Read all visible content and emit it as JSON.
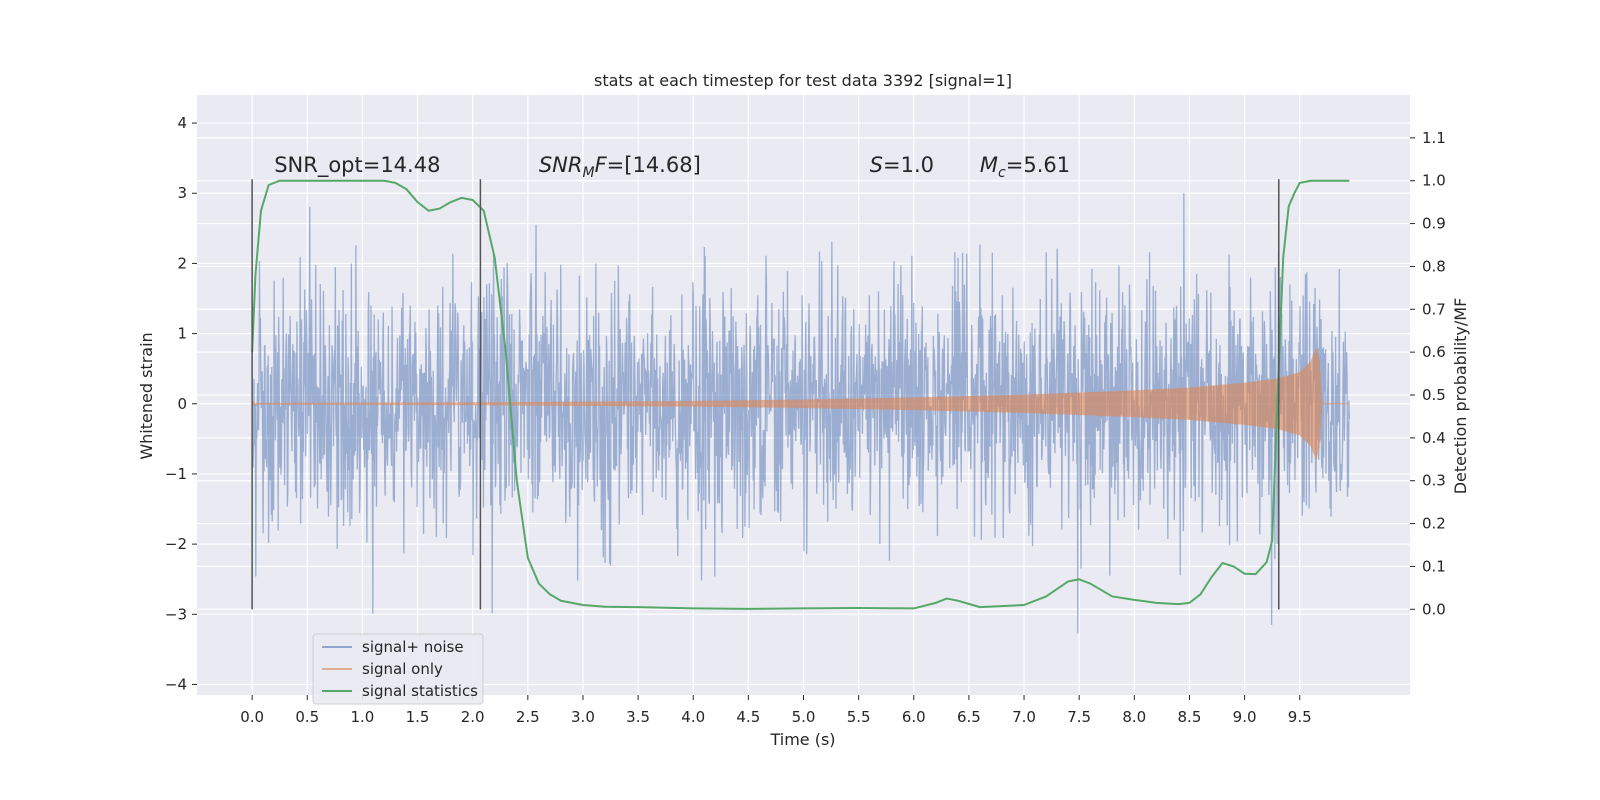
{
  "chart_data": {
    "type": "line",
    "title": "stats at each timestep for test data 3392 [signal=1]",
    "xlabel": "Time (s)",
    "ylabel": "Whitened strain",
    "ylabel_right": "Detection probability/MF",
    "xlim": [
      -0.5,
      10.5
    ],
    "ylim": [
      -4.15,
      4.4
    ],
    "ylim_right": [
      -0.2,
      1.2
    ],
    "x_ticks": [
      0.0,
      0.5,
      1.0,
      1.5,
      2.0,
      2.5,
      3.0,
      3.5,
      4.0,
      4.5,
      5.0,
      5.5,
      6.0,
      6.5,
      7.0,
      7.5,
      8.0,
      8.5,
      9.0,
      9.5
    ],
    "x_tick_labels": [
      "0.0",
      "0.5",
      "1.0",
      "1.5",
      "2.0",
      "2.5",
      "3.0",
      "3.5",
      "4.0",
      "4.5",
      "5.0",
      "5.5",
      "6.0",
      "6.5",
      "7.0",
      "7.5",
      "8.0",
      "8.5",
      "9.0",
      "9.5"
    ],
    "y_ticks": [
      -4,
      -3,
      -2,
      -1,
      0,
      1,
      2,
      3,
      4
    ],
    "y_tick_labels": [
      "−4",
      "−3",
      "−2",
      "−1",
      "0",
      "1",
      "2",
      "3",
      "4"
    ],
    "y_ticks_right": [
      0.0,
      0.1,
      0.2,
      0.3,
      0.4,
      0.5,
      0.6,
      0.7,
      0.8,
      0.9,
      1.0,
      1.1
    ],
    "y_tick_labels_right": [
      "0.0",
      "0.1",
      "0.2",
      "0.3",
      "0.4",
      "0.5",
      "0.6",
      "0.7",
      "0.8",
      "0.9",
      "1.0",
      "1.1"
    ],
    "grid": true,
    "legend_placement": "bottom-left",
    "series": [
      {
        "name": "signal+ noise",
        "axis": "left",
        "color": "#4c72b0",
        "noise_std": 0.85,
        "noise_clip": [
          -3.8,
          4.05
        ]
      },
      {
        "name": "signal only",
        "axis": "left",
        "color": "#dd8452",
        "envelope": {
          "x": [
            0.0,
            2.0,
            4.0,
            5.0,
            6.0,
            7.0,
            8.0,
            8.5,
            9.0,
            9.3,
            9.5,
            9.6,
            9.65,
            9.68,
            9.7,
            9.95
          ],
          "amp": [
            0.01,
            0.02,
            0.04,
            0.06,
            0.09,
            0.13,
            0.19,
            0.23,
            0.3,
            0.36,
            0.45,
            0.6,
            0.8,
            0.6,
            0.0,
            0.0
          ]
        }
      },
      {
        "name": "signal statistics",
        "axis": "right",
        "color": "#55a868",
        "x": [
          0.0,
          0.03,
          0.08,
          0.15,
          0.25,
          0.4,
          0.6,
          0.8,
          1.0,
          1.2,
          1.3,
          1.4,
          1.5,
          1.6,
          1.7,
          1.8,
          1.9,
          2.0,
          2.1,
          2.2,
          2.3,
          2.4,
          2.5,
          2.6,
          2.7,
          2.8,
          3.0,
          3.2,
          3.5,
          4.0,
          4.5,
          5.0,
          5.5,
          6.0,
          6.2,
          6.3,
          6.4,
          6.6,
          7.0,
          7.2,
          7.4,
          7.5,
          7.6,
          7.8,
          8.0,
          8.2,
          8.4,
          8.5,
          8.6,
          8.7,
          8.8,
          8.9,
          9.0,
          9.1,
          9.2,
          9.25,
          9.3,
          9.35,
          9.4,
          9.45,
          9.5,
          9.6,
          9.95
        ],
        "y": [
          0.6,
          0.78,
          0.93,
          0.99,
          1.0,
          1.0,
          1.0,
          1.0,
          1.0,
          1.0,
          0.995,
          0.98,
          0.95,
          0.93,
          0.935,
          0.95,
          0.96,
          0.955,
          0.93,
          0.82,
          0.6,
          0.3,
          0.12,
          0.06,
          0.035,
          0.02,
          0.01,
          0.006,
          0.005,
          0.002,
          0.001,
          0.002,
          0.003,
          0.002,
          0.015,
          0.025,
          0.02,
          0.005,
          0.01,
          0.03,
          0.065,
          0.07,
          0.06,
          0.03,
          0.022,
          0.015,
          0.012,
          0.015,
          0.035,
          0.075,
          0.108,
          0.1,
          0.083,
          0.082,
          0.11,
          0.16,
          0.5,
          0.82,
          0.94,
          0.97,
          0.995,
          1.0,
          1.0
        ]
      }
    ],
    "vlines": {
      "x": [
        0.0,
        2.07,
        9.31
      ],
      "ymin": -2.93,
      "ymax": 3.2,
      "color": "#555555"
    },
    "annotations": [
      {
        "x": 0.2,
        "y": 3.3,
        "parts": [
          {
            "t": "SNR_opt=14.48",
            "italic": false
          }
        ]
      },
      {
        "x": 2.6,
        "y": 3.3,
        "parts": [
          {
            "t": "SNR",
            "italic": true
          },
          {
            "t": "M",
            "italic": true,
            "sub": true
          },
          {
            "t": "F",
            "italic": true
          },
          {
            "t": "=[14.68]",
            "italic": false
          }
        ]
      },
      {
        "x": 5.6,
        "y": 3.3,
        "parts": [
          {
            "t": "S",
            "italic": true
          },
          {
            "t": "=1.0",
            "italic": false
          }
        ]
      },
      {
        "x": 6.6,
        "y": 3.3,
        "parts": [
          {
            "t": "M",
            "italic": true
          },
          {
            "t": "c",
            "italic": true,
            "sub": true
          },
          {
            "t": "=5.61",
            "italic": false
          }
        ]
      }
    ]
  }
}
